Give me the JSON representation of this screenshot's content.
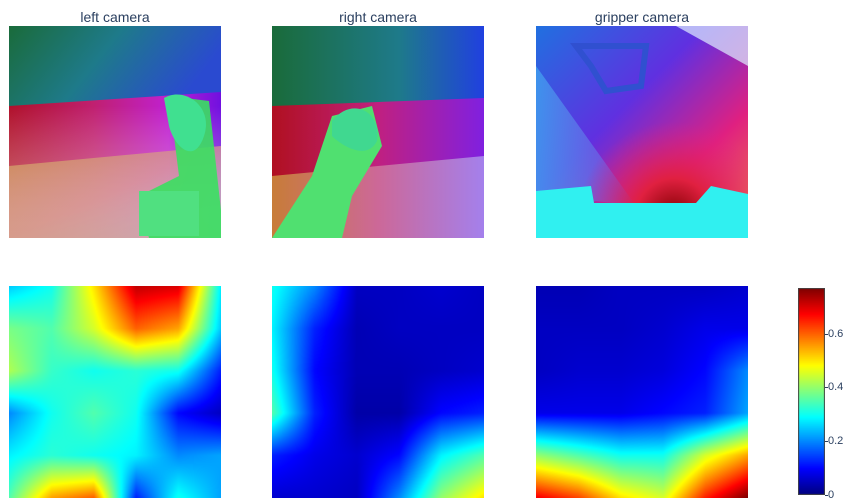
{
  "titles": [
    "left camera",
    "right camera",
    "gripper camera"
  ],
  "chart_data": {
    "type": "heatmap",
    "colorscale": "jet",
    "zlim": [
      0,
      0.77
    ],
    "colorbar_ticks": [
      "0",
      "0.2",
      "0.4",
      "0.6"
    ],
    "colorbar_tick_values": [
      0,
      0.2,
      0.4,
      0.6
    ],
    "heatmaps": [
      {
        "values": [
          [
            0.25,
            0.3,
            0.5,
            0.72,
            0.7,
            0.28
          ],
          [
            0.38,
            0.35,
            0.45,
            0.6,
            0.55,
            0.25
          ],
          [
            0.42,
            0.33,
            0.3,
            0.32,
            0.3,
            0.12
          ],
          [
            0.2,
            0.3,
            0.35,
            0.3,
            0.1,
            0.05
          ],
          [
            0.28,
            0.32,
            0.3,
            0.28,
            0.2,
            0.22
          ],
          [
            0.35,
            0.55,
            0.6,
            0.12,
            0.3,
            0.22
          ]
        ]
      },
      {
        "values": [
          [
            0.3,
            0.2,
            0.05,
            0.05,
            0.06,
            0.05
          ],
          [
            0.28,
            0.12,
            0.04,
            0.05,
            0.05,
            0.05
          ],
          [
            0.3,
            0.1,
            0.04,
            0.04,
            0.05,
            0.06
          ],
          [
            0.35,
            0.12,
            0.03,
            0.03,
            0.1,
            0.12
          ],
          [
            0.12,
            0.08,
            0.06,
            0.1,
            0.28,
            0.35
          ],
          [
            0.06,
            0.06,
            0.05,
            0.2,
            0.4,
            0.5
          ]
        ]
      },
      {
        "values": [
          [
            0.04,
            0.04,
            0.05,
            0.05,
            0.05,
            0.06
          ],
          [
            0.05,
            0.05,
            0.05,
            0.06,
            0.08,
            0.08
          ],
          [
            0.05,
            0.06,
            0.06,
            0.07,
            0.1,
            0.2
          ],
          [
            0.08,
            0.08,
            0.08,
            0.1,
            0.12,
            0.22
          ],
          [
            0.4,
            0.35,
            0.3,
            0.3,
            0.45,
            0.55
          ],
          [
            0.68,
            0.62,
            0.5,
            0.45,
            0.65,
            0.77
          ]
        ]
      }
    ]
  }
}
